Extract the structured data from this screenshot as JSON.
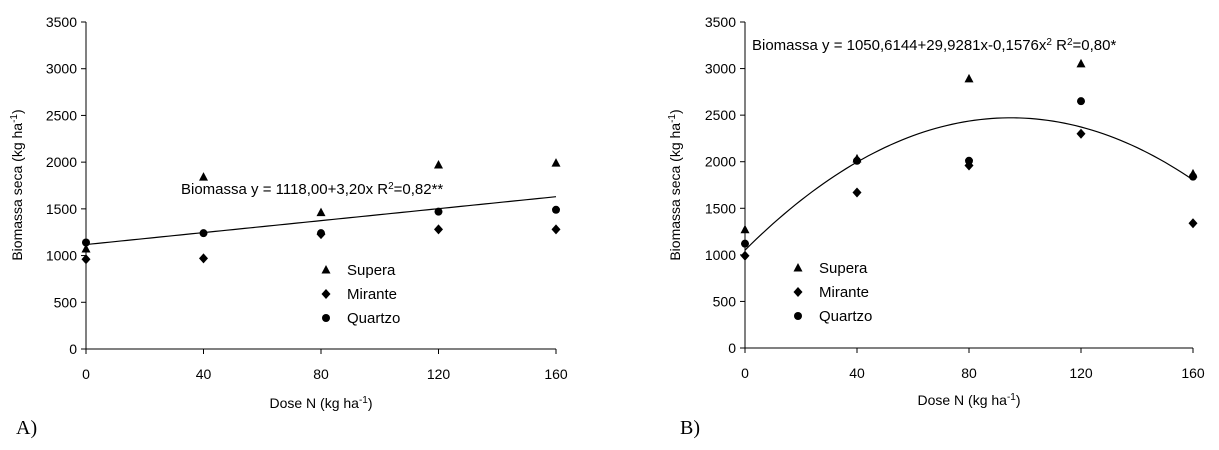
{
  "chart_data": [
    {
      "type": "scatter",
      "panel_label": "A)",
      "xlabel": "Dose N (kg ha",
      "xlabel_sup": "-1",
      "xlabel_close": ")",
      "ylabel": "Biomassa seca (kg ha",
      "ylabel_sup": "-1",
      "ylabel_close": ")",
      "xlim": [
        0,
        160
      ],
      "ylim": [
        0,
        3500
      ],
      "xticks": [
        "0",
        "40",
        "80",
        "120",
        "160"
      ],
      "yticks": [
        "0",
        "500",
        "1000",
        "1500",
        "2000",
        "2500",
        "3000",
        "3500"
      ],
      "grid": false,
      "equation": {
        "pre": "Biomassa y = 1118,00+3,20x R",
        "sup": "2",
        "post": "=0,82**"
      },
      "fit": {
        "kind": "linear",
        "coefficients": [
          1118.0,
          3.2
        ]
      },
      "legend_position": "center-bottom",
      "series": [
        {
          "name": "Supera",
          "marker": "triangle",
          "x": [
            0,
            40,
            80,
            120,
            160
          ],
          "y": [
            1070,
            1840,
            1460,
            1970,
            1990
          ]
        },
        {
          "name": "Mirante",
          "marker": "diamond",
          "x": [
            0,
            40,
            80,
            120,
            160
          ],
          "y": [
            960,
            970,
            1230,
            1280,
            1280
          ]
        },
        {
          "name": "Quartzo",
          "marker": "circle",
          "x": [
            0,
            40,
            80,
            120,
            160
          ],
          "y": [
            1140,
            1240,
            1240,
            1470,
            1490
          ]
        }
      ]
    },
    {
      "type": "scatter",
      "panel_label": "B)",
      "xlabel": "Dose N (kg ha",
      "xlabel_sup": "-1",
      "xlabel_close": ")",
      "ylabel": "Biomassa seca (kg ha",
      "ylabel_sup": "-1",
      "ylabel_close": ")",
      "xlim": [
        0,
        160
      ],
      "ylim": [
        0,
        3500
      ],
      "xticks": [
        "0",
        "40",
        "80",
        "120",
        "160"
      ],
      "yticks": [
        "0",
        "500",
        "1000",
        "1500",
        "2000",
        "2500",
        "3000",
        "3500"
      ],
      "grid": false,
      "equation": {
        "pre": "Biomassa y = 1050,6144+29,9281x-0,1576x",
        "sup": "2",
        "post": " R",
        "sup2": "2",
        "post2": "=0,80*"
      },
      "fit": {
        "kind": "quadratic",
        "coefficients": [
          1050.6144,
          29.9281,
          -0.1576
        ]
      },
      "legend_position": "left-bottom",
      "series": [
        {
          "name": "Supera",
          "marker": "triangle",
          "x": [
            0,
            40,
            80,
            120,
            160
          ],
          "y": [
            1270,
            2030,
            2890,
            3050,
            1870
          ]
        },
        {
          "name": "Mirante",
          "marker": "diamond",
          "x": [
            0,
            40,
            80,
            120,
            160
          ],
          "y": [
            990,
            1670,
            1960,
            2300,
            1340
          ]
        },
        {
          "name": "Quartzo",
          "marker": "circle",
          "x": [
            0,
            40,
            80,
            120,
            160
          ],
          "y": [
            1120,
            2010,
            2010,
            2650,
            1840
          ]
        }
      ]
    }
  ]
}
